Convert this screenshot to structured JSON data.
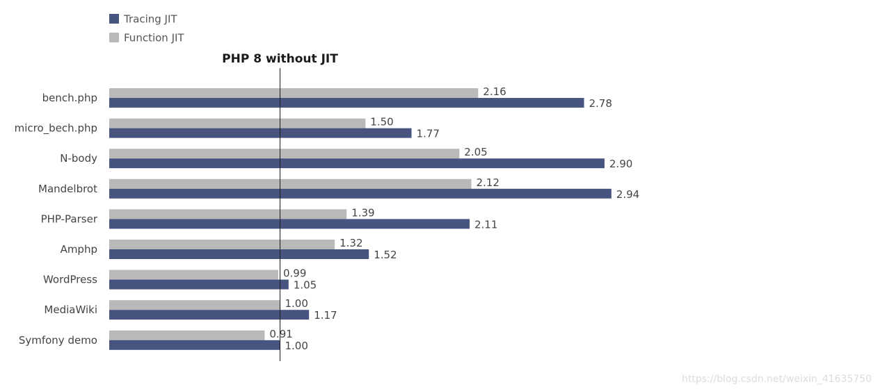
{
  "colors": {
    "tracing": "#475480",
    "function": "#b9b9b9",
    "baseline": "#1a1a1a"
  },
  "legend": [
    {
      "name": "Tracing JIT",
      "color": "#475480"
    },
    {
      "name": "Function JIT",
      "color": "#b9b9b9"
    }
  ],
  "baseline_label": "PHP 8 without JIT",
  "watermark": "https://blog.csdn.net/weixin_41635750",
  "chart_data": {
    "type": "bar",
    "orientation": "horizontal",
    "baseline_value": 1.0,
    "xlim": [
      0,
      3.2
    ],
    "grid": false,
    "legend_position": "top-left",
    "categories": [
      "bench.php",
      "micro_bech.php",
      "N-body",
      "Mandelbrot",
      "PHP-Parser",
      "Amphp",
      "WordPress",
      "MediaWiki",
      "Symfony demo"
    ],
    "series": [
      {
        "name": "Function JIT",
        "values": [
          2.16,
          1.5,
          2.05,
          2.12,
          1.39,
          1.32,
          0.99,
          1.0,
          0.91
        ],
        "labels": [
          "2.16",
          "1.50",
          "2.05",
          "2.12",
          "1.39",
          "1.32",
          "0.99",
          "1.00",
          "0.91"
        ]
      },
      {
        "name": "Tracing JIT",
        "values": [
          2.78,
          1.77,
          2.9,
          2.94,
          2.11,
          1.52,
          1.05,
          1.17,
          1.0
        ],
        "labels": [
          "2.78",
          "1.77",
          "2.90",
          "2.94",
          "2.11",
          "1.52",
          "1.05",
          "1.17",
          "1.00"
        ]
      }
    ]
  }
}
